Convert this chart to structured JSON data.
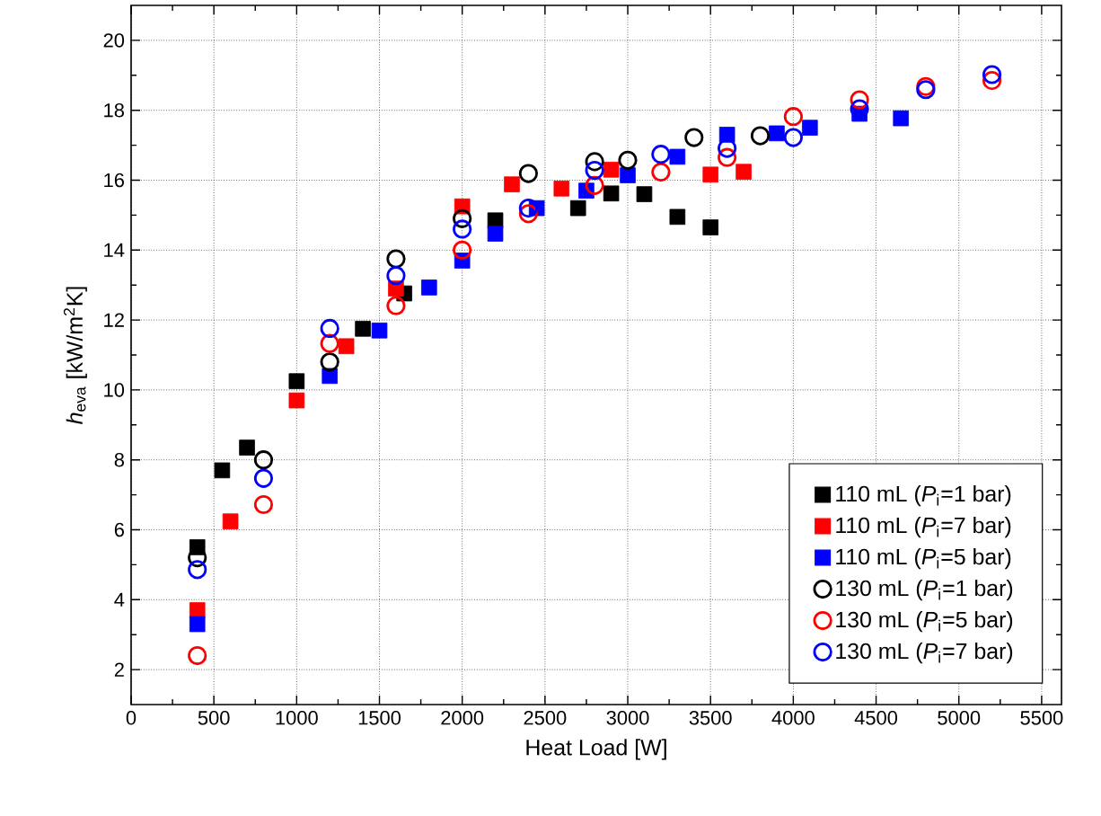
{
  "chart_data": {
    "type": "scatter",
    "xlabel": "Heat Load [W]",
    "ylabel": "*h*$_{eva}$ [kW/m$^{2}$K]",
    "xlim": [
      0,
      5620
    ],
    "ylim": [
      1,
      21
    ],
    "xticks": [
      0,
      500,
      1000,
      1500,
      2000,
      2500,
      3000,
      3500,
      4000,
      4500,
      5000,
      5500
    ],
    "yticks": [
      2,
      4,
      6,
      8,
      10,
      12,
      14,
      16,
      18,
      20
    ],
    "grid": true,
    "legend": "bottom right",
    "series": [
      {
        "name": "110 mL (*P*$_{i}$=1 bar)",
        "color": "#000000",
        "marker": "square",
        "x": [
          400,
          550,
          700,
          1000,
          1400,
          1650,
          2200,
          2700,
          2900,
          3100,
          3300,
          3500
        ],
        "values": [
          5.5,
          7.7,
          8.35,
          10.25,
          11.75,
          12.76,
          14.85,
          15.2,
          15.62,
          15.6,
          14.95,
          14.65
        ]
      },
      {
        "name": "110 mL (*P*$_{i}$=7 bar)",
        "color": "#ff0000",
        "marker": "square",
        "x": [
          400,
          600,
          1000,
          1300,
          1600,
          2000,
          2300,
          2600,
          2900,
          3500,
          3700
        ],
        "values": [
          3.7,
          6.24,
          9.7,
          11.25,
          12.9,
          15.25,
          15.88,
          15.76,
          16.3,
          16.16,
          16.24
        ]
      },
      {
        "name": "110 mL (*P*$_{i}$=5 bar)",
        "color": "#0000ff",
        "marker": "square",
        "x": [
          400,
          1200,
          1500,
          1800,
          2000,
          2200,
          2450,
          2750,
          3000,
          3300,
          3600,
          3900,
          4100,
          4400,
          4650
        ],
        "values": [
          3.3,
          10.4,
          11.7,
          12.93,
          13.7,
          14.47,
          15.2,
          15.7,
          16.14,
          16.67,
          17.3,
          17.34,
          17.5,
          17.9,
          17.77
        ]
      },
      {
        "name": "130 mL (*P*$_{i}$=1 bar)",
        "color": "#000000",
        "marker": "circle",
        "x": [
          400,
          800,
          1200,
          1600,
          2000,
          2400,
          2800,
          3000,
          3400,
          3800
        ],
        "values": [
          5.2,
          8.0,
          10.8,
          13.75,
          14.9,
          16.19,
          16.53,
          16.57,
          17.22,
          17.27
        ]
      },
      {
        "name": "130 mL (*P*$_{i}$=5 bar)",
        "color": "#ff0000",
        "marker": "circle",
        "x": [
          400,
          800,
          1200,
          1600,
          2000,
          2400,
          2800,
          3200,
          3600,
          4000,
          4400,
          4800,
          5200
        ],
        "values": [
          2.4,
          6.72,
          11.33,
          12.41,
          14.0,
          15.04,
          15.85,
          16.23,
          16.65,
          17.82,
          18.3,
          18.68,
          18.85
        ]
      },
      {
        "name": "130 mL (*P*$_{i}$=7 bar)",
        "color": "#0000ff",
        "marker": "circle",
        "x": [
          400,
          800,
          1200,
          1600,
          2000,
          2400,
          2800,
          3200,
          3600,
          4000,
          4400,
          4800,
          5200
        ],
        "values": [
          4.86,
          7.47,
          11.76,
          13.27,
          14.6,
          15.2,
          16.28,
          16.74,
          16.91,
          17.22,
          18.04,
          18.59,
          19.02
        ]
      }
    ]
  }
}
